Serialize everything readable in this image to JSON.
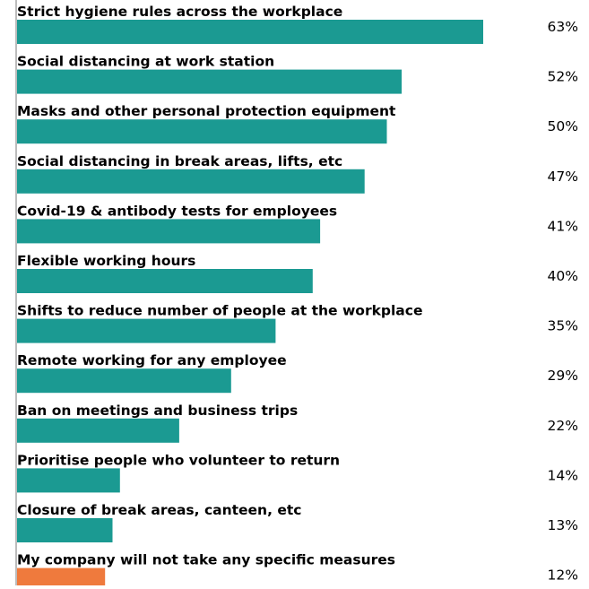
{
  "chart_data": {
    "type": "bar",
    "orientation": "horizontal",
    "categories": [
      "Strict hygiene rules across the workplace",
      "Social distancing at  work station",
      "Masks and other personal protection equipment",
      "Social distancing in break areas, lifts, etc",
      "Covid-19 & antibody tests for employees",
      "Flexible working hours",
      "Shifts to reduce number of people at the workplace",
      "Remote working for any employee",
      "Ban on meetings and business trips",
      "Prioritise people who volunteer to return",
      "Closure of break areas, canteen, etc",
      "My company will not take any specific measures"
    ],
    "values": [
      63,
      52,
      50,
      47,
      41,
      40,
      35,
      29,
      22,
      14,
      13,
      12
    ],
    "value_labels": [
      "63%",
      "52%",
      "50%",
      "47%",
      "41%",
      "40%",
      "35%",
      "29%",
      "22%",
      "14%",
      "13%",
      "12%"
    ],
    "bar_colors": [
      "#1b9a92",
      "#1b9a92",
      "#1b9a92",
      "#1b9a92",
      "#1b9a92",
      "#1b9a92",
      "#1b9a92",
      "#1b9a92",
      "#1b9a92",
      "#1b9a92",
      "#1b9a92",
      "#ef7a3d"
    ],
    "xlim": [
      0,
      63
    ],
    "grid": false,
    "legend": "none"
  }
}
